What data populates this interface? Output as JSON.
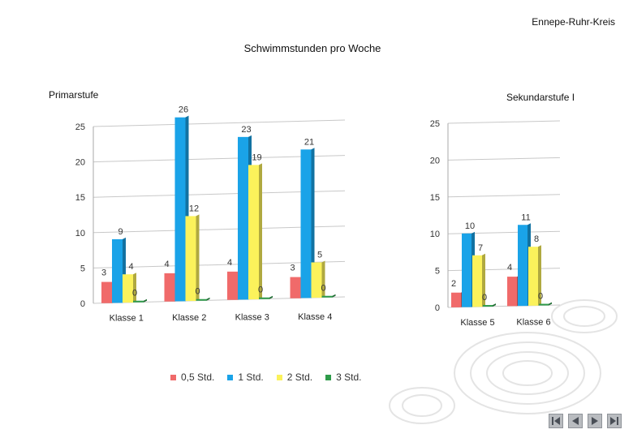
{
  "header": {
    "org": "Ennepe-Ruhr-Kreis"
  },
  "title": "Schwimmstunden pro Woche",
  "colors": {
    "s05": "#f06a6a",
    "s1": "#1aa3e8",
    "s2": "#fbf25b",
    "s3": "#2e9b4a"
  },
  "legend": [
    {
      "label": "0,5 Std.",
      "color": "#f06a6a"
    },
    {
      "label": "1 Std.",
      "color": "#1aa3e8"
    },
    {
      "label": "2 Std.",
      "color": "#fbf25b"
    },
    {
      "label": "3 Std.",
      "color": "#2e9b4a"
    }
  ],
  "nav": {
    "first": "first-icon",
    "prev": "prev-icon",
    "next": "next-icon",
    "last": "last-icon"
  },
  "chart_data": [
    {
      "type": "bar",
      "title": "Primarstufe",
      "categories": [
        "Klasse 1",
        "Klasse 2",
        "Klasse 3",
        "Klasse 4"
      ],
      "series": [
        {
          "name": "0,5 Std.",
          "values": [
            3,
            4,
            4,
            3
          ]
        },
        {
          "name": "1 Std.",
          "values": [
            9,
            26,
            23,
            21
          ]
        },
        {
          "name": "2 Std.",
          "values": [
            4,
            12,
            19,
            5
          ]
        },
        {
          "name": "3 Std.",
          "values": [
            0,
            0,
            0,
            0
          ]
        }
      ],
      "yticks": [
        "0",
        "5",
        "10",
        "15",
        "20",
        "25"
      ],
      "ylim": [
        0,
        25
      ],
      "grid": true,
      "legend": "bottom"
    },
    {
      "type": "bar",
      "title": "Sekundarstufe I",
      "categories": [
        "Klasse 5",
        "Klasse 6"
      ],
      "series": [
        {
          "name": "0,5 Std.",
          "values": [
            2,
            4
          ]
        },
        {
          "name": "1 Std.",
          "values": [
            10,
            11
          ]
        },
        {
          "name": "2 Std.",
          "values": [
            7,
            8
          ]
        },
        {
          "name": "3 Std.",
          "values": [
            0,
            0
          ]
        }
      ],
      "yticks": [
        "0",
        "5",
        "10",
        "15",
        "20",
        "25"
      ],
      "ylim": [
        0,
        25
      ],
      "grid": true,
      "legend": "bottom"
    }
  ]
}
